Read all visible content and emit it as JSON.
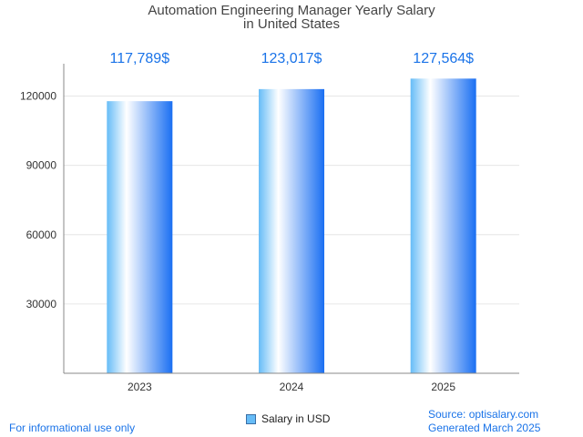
{
  "title_line1": "Automation Engineering Manager Yearly Salary",
  "title_line2": "in United States",
  "legend_label": "Salary in USD",
  "footer_left": "For informational use only",
  "footer_source": "Source: optisalary.com",
  "footer_generated": "Generated March 2025",
  "colors": {
    "bar_dark": "#1a6ff2",
    "bar_light": "#ffffff",
    "bar_mid": "#66bcf7",
    "value_label": "#1a73e8",
    "axis": "#888888",
    "grid": "#e6e6e6"
  },
  "chart_data": {
    "type": "bar",
    "categories": [
      "2023",
      "2024",
      "2025"
    ],
    "series": [
      {
        "name": "Salary in USD",
        "values": [
          117789,
          123017,
          127564
        ]
      }
    ],
    "value_labels": [
      "117,789$",
      "123,017$",
      "127,564$"
    ],
    "y_ticks": [
      30000,
      60000,
      90000,
      120000
    ],
    "ylim": [
      0,
      134000
    ],
    "grid": true,
    "legend": "bottom-center"
  }
}
